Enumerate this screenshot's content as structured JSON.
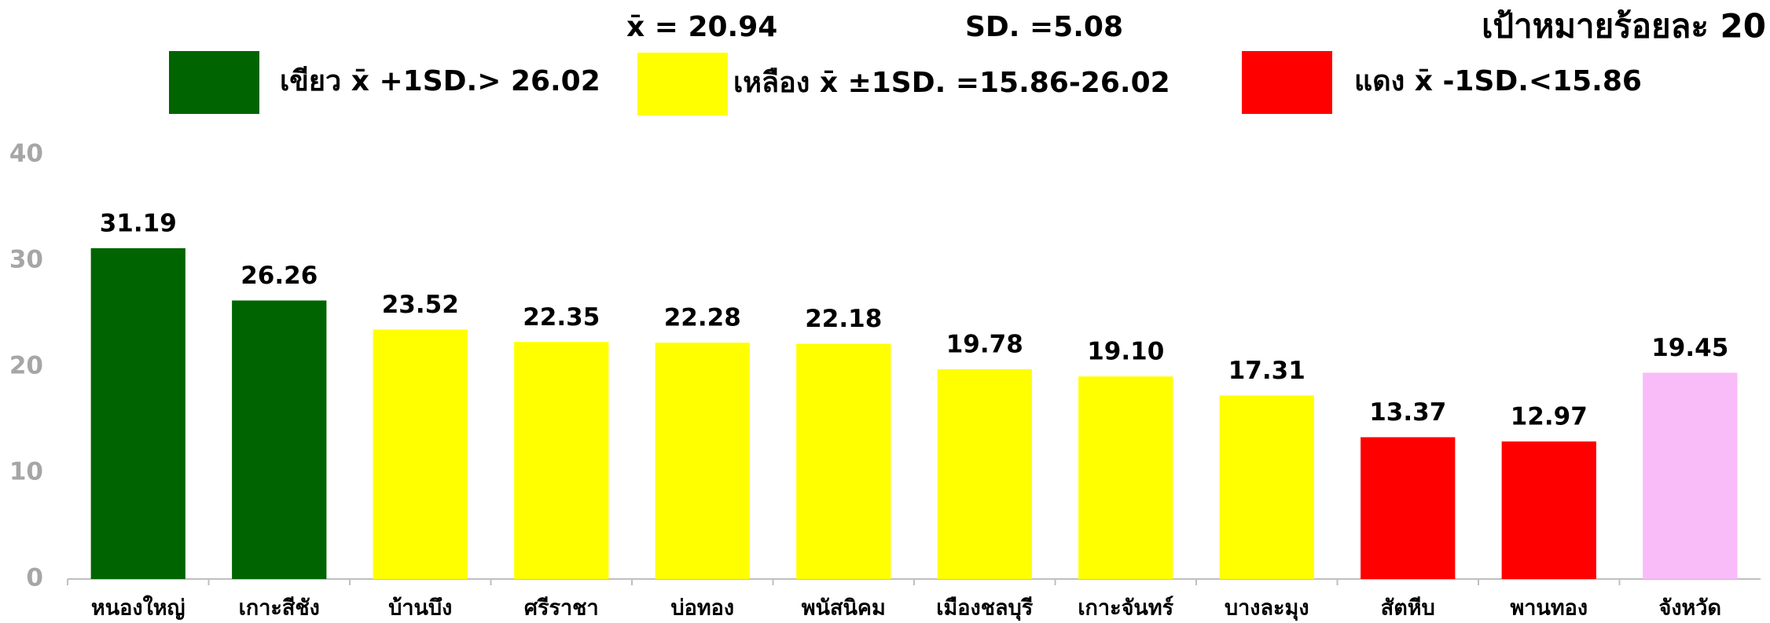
{
  "chart_data": {
    "type": "bar",
    "title": "เป้าหมายร้อยละ 20",
    "mean_label": "x̄ = 20.94",
    "sd_label": "SD. =5.08",
    "legend": [
      {
        "name": "เขียว x̄ +1SD.> 26.02",
        "color": "#006400"
      },
      {
        "name": "เหลือง x̄ ±1SD. =15.86-26.02",
        "color": "#ffff00"
      },
      {
        "name": "แดง x̄ -1SD.<15.86",
        "color": "#ff0000"
      }
    ],
    "categories": [
      "หนองใหญ่",
      "เกาะสีชัง",
      "บ้านบึง",
      "ศรีราชา",
      "บ่อทอง",
      "พนัสนิคม",
      "เมืองชลบุรี",
      "เกาะจันทร์",
      "บางละมุง",
      "สัตหีบ",
      "พานทอง",
      "จังหวัด"
    ],
    "values": [
      31.19,
      26.26,
      23.52,
      22.35,
      22.28,
      22.18,
      19.78,
      19.1,
      17.31,
      13.37,
      12.97,
      19.45
    ],
    "value_labels": [
      "31.19",
      "26.26",
      "23.52",
      "22.35",
      "22.28",
      "22.18",
      "19.78",
      "19.10",
      "17.31",
      "13.37",
      "12.97",
      "19.45"
    ],
    "colors": [
      "#006400",
      "#006400",
      "#ffff00",
      "#ffff00",
      "#ffff00",
      "#ffff00",
      "#ffff00",
      "#ffff00",
      "#ffff00",
      "#ff0000",
      "#ff0000",
      "#f9bcf9"
    ],
    "ylim": [
      0,
      40
    ],
    "yticks": [
      0,
      10,
      20,
      30,
      40
    ],
    "grid": false
  }
}
